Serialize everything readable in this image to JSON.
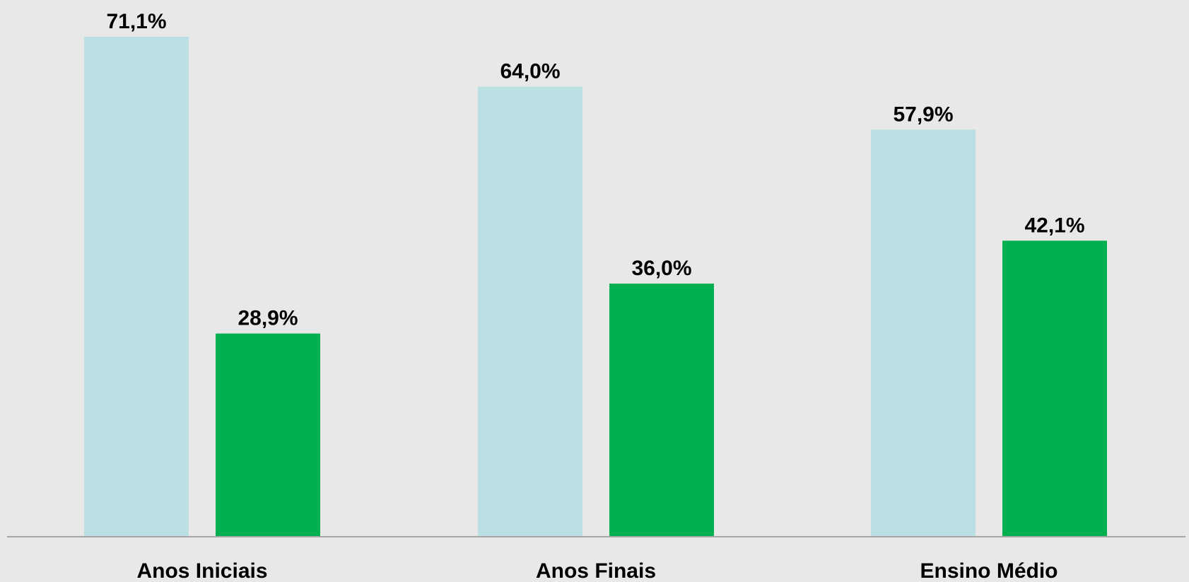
{
  "chart_data": {
    "type": "bar",
    "categories": [
      "Anos Iniciais",
      "Anos Finais",
      "Ensino Médio"
    ],
    "series": [
      {
        "color": "#bbe0e3",
        "values": [
          71.1,
          64.0,
          57.9
        ],
        "labels": [
          "71,1%",
          "64,0%",
          "57,9%"
        ]
      },
      {
        "color": "#00b050",
        "values": [
          28.9,
          36.0,
          42.1
        ],
        "labels": [
          "28,9%",
          "36,0%",
          "42,1%"
        ]
      }
    ],
    "ylim": [
      0,
      75
    ],
    "grid": false,
    "legend": "none",
    "baseline_color": "#a6a6a6"
  }
}
